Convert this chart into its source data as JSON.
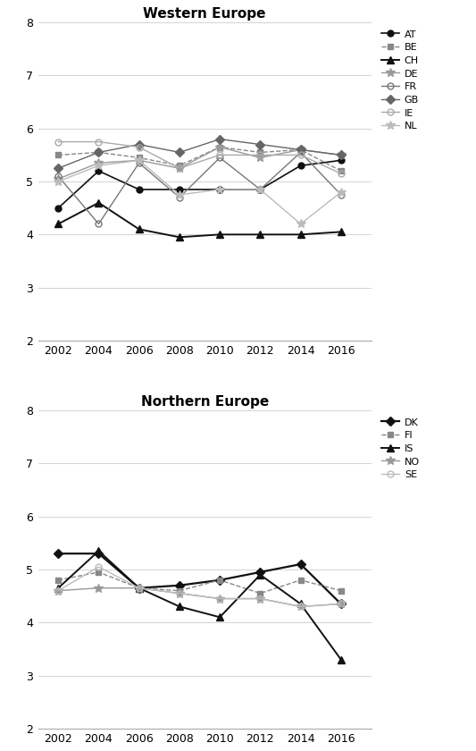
{
  "years": [
    2002,
    2004,
    2006,
    2008,
    2010,
    2012,
    2014,
    2016
  ],
  "western_europe": {
    "title": "Western Europe",
    "ylim": [
      2,
      8
    ],
    "yticks": [
      2,
      3,
      4,
      5,
      6,
      7,
      8
    ],
    "series": {
      "AT": {
        "values": [
          4.5,
          5.2,
          4.85,
          4.85,
          4.85,
          4.85,
          5.3,
          5.4
        ],
        "color": "#111111",
        "marker": "o",
        "markersize": 5,
        "linestyle": "-",
        "linewidth": 1.2,
        "fillstyle": "full"
      },
      "BE": {
        "values": [
          5.5,
          5.55,
          5.45,
          5.3,
          5.65,
          5.55,
          5.6,
          5.2
        ],
        "color": "#888888",
        "marker": "s",
        "markersize": 5,
        "linestyle": "--",
        "linewidth": 1.0,
        "fillstyle": "full"
      },
      "CH": {
        "values": [
          4.2,
          4.6,
          4.1,
          3.95,
          4.0,
          4.0,
          4.0,
          4.05
        ],
        "color": "#111111",
        "marker": "^",
        "markersize": 6,
        "linestyle": "-",
        "linewidth": 1.4,
        "fillstyle": "full"
      },
      "DE": {
        "values": [
          5.05,
          5.35,
          5.4,
          5.25,
          5.65,
          5.45,
          5.6,
          5.5
        ],
        "color": "#999999",
        "marker": "*",
        "markersize": 7,
        "linestyle": "-",
        "linewidth": 1.0,
        "fillstyle": "full"
      },
      "FR": {
        "values": [
          5.1,
          4.2,
          5.35,
          4.7,
          5.45,
          4.85,
          5.55,
          4.75
        ],
        "color": "#777777",
        "marker": "o",
        "markersize": 5,
        "linestyle": "-",
        "linewidth": 1.0,
        "fillstyle": "none"
      },
      "GB": {
        "values": [
          5.25,
          5.55,
          5.7,
          5.55,
          5.8,
          5.7,
          5.6,
          5.5
        ],
        "color": "#666666",
        "marker": "D",
        "markersize": 5,
        "linestyle": "-",
        "linewidth": 1.0,
        "fillstyle": "full"
      },
      "IE": {
        "values": [
          5.75,
          5.75,
          5.65,
          5.25,
          5.5,
          5.5,
          5.5,
          5.15
        ],
        "color": "#aaaaaa",
        "marker": "o",
        "markersize": 5,
        "linestyle": "-",
        "linewidth": 1.0,
        "fillstyle": "none"
      },
      "NL": {
        "values": [
          5.0,
          5.3,
          5.4,
          4.75,
          4.85,
          4.85,
          4.2,
          4.8
        ],
        "color": "#bbbbbb",
        "marker": "*",
        "markersize": 7,
        "linestyle": "-",
        "linewidth": 1.0,
        "fillstyle": "full"
      }
    }
  },
  "northern_europe": {
    "title": "Northern Europe",
    "ylim": [
      2,
      8
    ],
    "yticks": [
      2,
      3,
      4,
      5,
      6,
      7,
      8
    ],
    "series": {
      "DK": {
        "values": [
          5.3,
          5.3,
          4.65,
          4.7,
          4.8,
          4.95,
          5.1,
          4.35
        ],
        "color": "#111111",
        "marker": "D",
        "markersize": 5,
        "linestyle": "-",
        "linewidth": 1.6,
        "fillstyle": "full"
      },
      "FI": {
        "values": [
          4.8,
          4.95,
          4.65,
          4.6,
          4.8,
          4.55,
          4.8,
          4.6
        ],
        "color": "#888888",
        "marker": "s",
        "markersize": 5,
        "linestyle": "--",
        "linewidth": 1.0,
        "fillstyle": "full"
      },
      "IS": {
        "values": [
          4.65,
          5.35,
          4.65,
          4.3,
          4.1,
          4.9,
          4.35,
          3.3
        ],
        "color": "#111111",
        "marker": "^",
        "markersize": 6,
        "linestyle": "-",
        "linewidth": 1.4,
        "fillstyle": "full"
      },
      "NO": {
        "values": [
          4.6,
          4.65,
          4.65,
          4.55,
          4.45,
          4.45,
          4.3,
          4.35
        ],
        "color": "#999999",
        "marker": "*",
        "markersize": 7,
        "linestyle": "-",
        "linewidth": 1.0,
        "fillstyle": "full"
      },
      "SE": {
        "values": [
          4.6,
          5.05,
          4.65,
          4.55,
          4.45,
          4.45,
          4.3,
          4.35
        ],
        "color": "#bbbbbb",
        "marker": "o",
        "markersize": 5,
        "linestyle": "-",
        "linewidth": 1.0,
        "fillstyle": "none"
      }
    }
  },
  "background_color": "#ffffff",
  "title_fontsize": 11
}
